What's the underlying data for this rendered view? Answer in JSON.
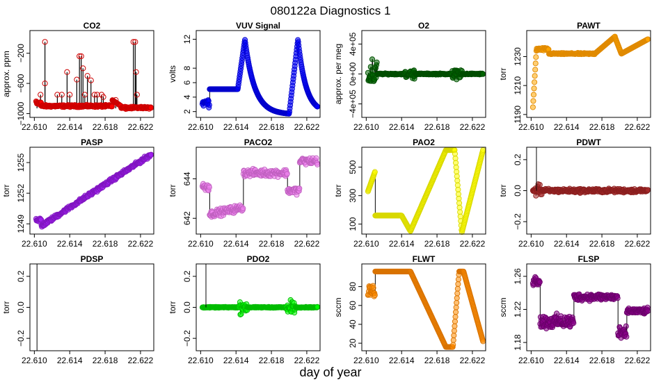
{
  "title": "080122a   Diagnostics 1",
  "xlabel": "day of year",
  "chart_data": [
    {
      "type": "scatter",
      "title": "CO2",
      "ylabel": "approx. ppm",
      "color": "#ff0000",
      "edge": "#cc0000",
      "xlim": [
        22.6095,
        22.6235
      ],
      "ylim": [
        -1050,
        100
      ],
      "xticks": [
        22.61,
        22.614,
        22.618,
        22.622
      ],
      "xtick_labels": [
        "22.610",
        "22.614",
        "22.618",
        "22.622"
      ],
      "yticks": [
        -1000,
        -600,
        -200
      ],
      "ytick_labels": [
        "−1000",
        "−600",
        "−200"
      ],
      "pattern": "co2",
      "base": -930,
      "spikes": [
        [
          22.6112,
          -50
        ],
        [
          22.6112,
          -600
        ],
        [
          22.6107,
          -750
        ],
        [
          22.6103,
          -860
        ],
        [
          22.6126,
          -750
        ],
        [
          22.6131,
          -750
        ],
        [
          22.6137,
          -450
        ],
        [
          22.614,
          -750
        ],
        [
          22.6148,
          -550
        ],
        [
          22.6151,
          -240
        ],
        [
          22.6153,
          -240
        ],
        [
          22.6155,
          -400
        ],
        [
          22.6157,
          -750
        ],
        [
          22.616,
          -500
        ],
        [
          22.6164,
          -560
        ],
        [
          22.6168,
          -750
        ],
        [
          22.6171,
          -750
        ],
        [
          22.6176,
          -750
        ],
        [
          22.6178,
          -780
        ],
        [
          22.6192,
          -820
        ],
        [
          22.6212,
          -50
        ],
        [
          22.6214,
          -50
        ],
        [
          22.6216,
          -750
        ],
        [
          22.6215,
          -450
        ]
      ]
    },
    {
      "type": "scatter",
      "title": "VUV Signal",
      "ylabel": "volts",
      "color": "#0000ff",
      "edge": "#0000cc",
      "xlim": [
        22.6095,
        22.6235
      ],
      "ylim": [
        1.2,
        13.2
      ],
      "xticks": [
        22.61,
        22.614,
        22.618,
        22.622
      ],
      "xtick_labels": [
        "22.610",
        "22.614",
        "22.618",
        "22.622"
      ],
      "yticks": [
        2,
        4,
        6,
        8,
        12
      ],
      "ytick_labels": [
        "2",
        "4",
        "6",
        "8",
        "12"
      ],
      "pattern": "vuv"
    },
    {
      "type": "scatter",
      "title": "O2",
      "ylabel": "approx. per meg",
      "color": "#006400",
      "edge": "#004d00",
      "xlim": [
        22.6095,
        22.6235
      ],
      "ylim": [
        -580000,
        580000
      ],
      "xticks": [
        22.61,
        22.614,
        22.618,
        22.622
      ],
      "xtick_labels": [
        "22.610",
        "22.614",
        "22.618",
        "22.622"
      ],
      "yticks": [
        -400000,
        0,
        400000
      ],
      "ytick_labels": [
        "−4e+05",
        "0e+00",
        "4e+05"
      ],
      "pattern": "o2"
    },
    {
      "type": "scatter",
      "title": "PAWT",
      "ylabel": "torr",
      "color": "#ffa500",
      "edge": "#e08a00",
      "xlim": [
        22.6095,
        22.6235
      ],
      "ylim": [
        1188,
        1248
      ],
      "xticks": [
        22.61,
        22.614,
        22.618,
        22.622
      ],
      "xtick_labels": [
        "22.610",
        "22.614",
        "22.618",
        "22.622"
      ],
      "yticks": [
        1190,
        1210,
        1230
      ],
      "ytick_labels": [
        "1190",
        "1210",
        "1230"
      ],
      "pattern": "pawt"
    },
    {
      "type": "scatter",
      "title": "PASP",
      "ylabel": "torr",
      "color": "#a020f0",
      "edge": "#8015c0",
      "xlim": [
        22.6095,
        22.6235
      ],
      "ylim": [
        1248,
        1256.5
      ],
      "xticks": [
        22.61,
        22.614,
        22.618,
        22.622
      ],
      "xtick_labels": [
        "22.610",
        "22.614",
        "22.618",
        "22.622"
      ],
      "yticks": [
        1249,
        1252,
        1255
      ],
      "ytick_labels": [
        "1249",
        "1252",
        "1255"
      ],
      "pattern": "pasp"
    },
    {
      "type": "scatter",
      "title": "PACO2",
      "ylabel": "torr",
      "color": "#ee82ee",
      "edge": "#c060c0",
      "xlim": [
        22.6095,
        22.6235
      ],
      "ylim": [
        641.2,
        645.6
      ],
      "xticks": [
        22.61,
        22.614,
        22.618,
        22.622
      ],
      "xtick_labels": [
        "22.610",
        "22.614",
        "22.618",
        "22.622"
      ],
      "yticks": [
        642,
        644
      ],
      "ytick_labels": [
        "642",
        "644"
      ],
      "pattern": "paco2"
    },
    {
      "type": "scatter",
      "title": "PAO2",
      "ylabel": "torr",
      "color": "#ffff00",
      "edge": "#d8d800",
      "xlim": [
        22.6095,
        22.6235
      ],
      "ylim": [
        30,
        640
      ],
      "xticks": [
        22.61,
        22.614,
        22.618,
        22.622
      ],
      "xtick_labels": [
        "22.610",
        "22.614",
        "22.618",
        "22.622"
      ],
      "yticks": [
        100,
        300,
        500
      ],
      "ytick_labels": [
        "100",
        "300",
        "500"
      ],
      "pattern": "pao2"
    },
    {
      "type": "scatter",
      "title": "PDWT",
      "ylabel": "torr",
      "color": "#a52a2a",
      "edge": "#8a1f1f",
      "xlim": [
        22.6095,
        22.6235
      ],
      "ylim": [
        -0.28,
        0.28
      ],
      "xticks": [
        22.61,
        22.614,
        22.618,
        22.622
      ],
      "xtick_labels": [
        "22.610",
        "22.614",
        "22.618",
        "22.622"
      ],
      "yticks": [
        -0.2,
        0.0,
        0.2
      ],
      "ytick_labels": [
        "−0.2",
        "0.0",
        "0.2"
      ],
      "pattern": "pdwt"
    },
    {
      "type": "scatter",
      "title": "PDSP",
      "ylabel": "torr",
      "color": "#000000",
      "edge": "#000000",
      "xlim": [
        22.6095,
        22.6235
      ],
      "ylim": [
        -0.28,
        0.28
      ],
      "xticks": [
        22.61,
        22.614,
        22.618,
        22.622
      ],
      "xtick_labels": [
        "22.610",
        "22.614",
        "22.618",
        "22.622"
      ],
      "yticks": [
        -0.2,
        0.0,
        0.2
      ],
      "ytick_labels": [
        "−0.2",
        "0.0",
        "0.2"
      ],
      "pattern": "empty"
    },
    {
      "type": "scatter",
      "title": "PDO2",
      "ylabel": "torr",
      "color": "#00ff00",
      "edge": "#00bb00",
      "xlim": [
        22.6095,
        22.6235
      ],
      "ylim": [
        -0.28,
        0.28
      ],
      "xticks": [
        22.61,
        22.614,
        22.618,
        22.622
      ],
      "xtick_labels": [
        "22.610",
        "22.614",
        "22.618",
        "22.622"
      ],
      "yticks": [
        -0.2,
        0.0,
        0.2
      ],
      "ytick_labels": [
        "−0.2",
        "0.0",
        "0.2"
      ],
      "pattern": "pdo2"
    },
    {
      "type": "scatter",
      "title": "FLWT",
      "ylabel": "sccm",
      "color": "#ff8c00",
      "edge": "#d97300",
      "xlim": [
        22.6095,
        22.6235
      ],
      "ylim": [
        12,
        104
      ],
      "xticks": [
        22.61,
        22.614,
        22.618,
        22.622
      ],
      "xtick_labels": [
        "22.610",
        "22.614",
        "22.618",
        "22.622"
      ],
      "yticks": [
        20,
        40,
        60,
        80
      ],
      "ytick_labels": [
        "20",
        "40",
        "60",
        "80"
      ],
      "pattern": "flwt"
    },
    {
      "type": "scatter",
      "title": "FLSP",
      "ylabel": "sccm",
      "color": "#8b008b",
      "edge": "#6b006b",
      "xlim": [
        22.6095,
        22.6235
      ],
      "ylim": [
        1.17,
        1.275
      ],
      "xticks": [
        22.61,
        22.614,
        22.618,
        22.622
      ],
      "xtick_labels": [
        "22.610",
        "22.614",
        "22.618",
        "22.622"
      ],
      "yticks": [
        1.18,
        1.22,
        1.26
      ],
      "ytick_labels": [
        "1.18",
        "1.22",
        "1.26"
      ],
      "pattern": "flsp"
    }
  ]
}
